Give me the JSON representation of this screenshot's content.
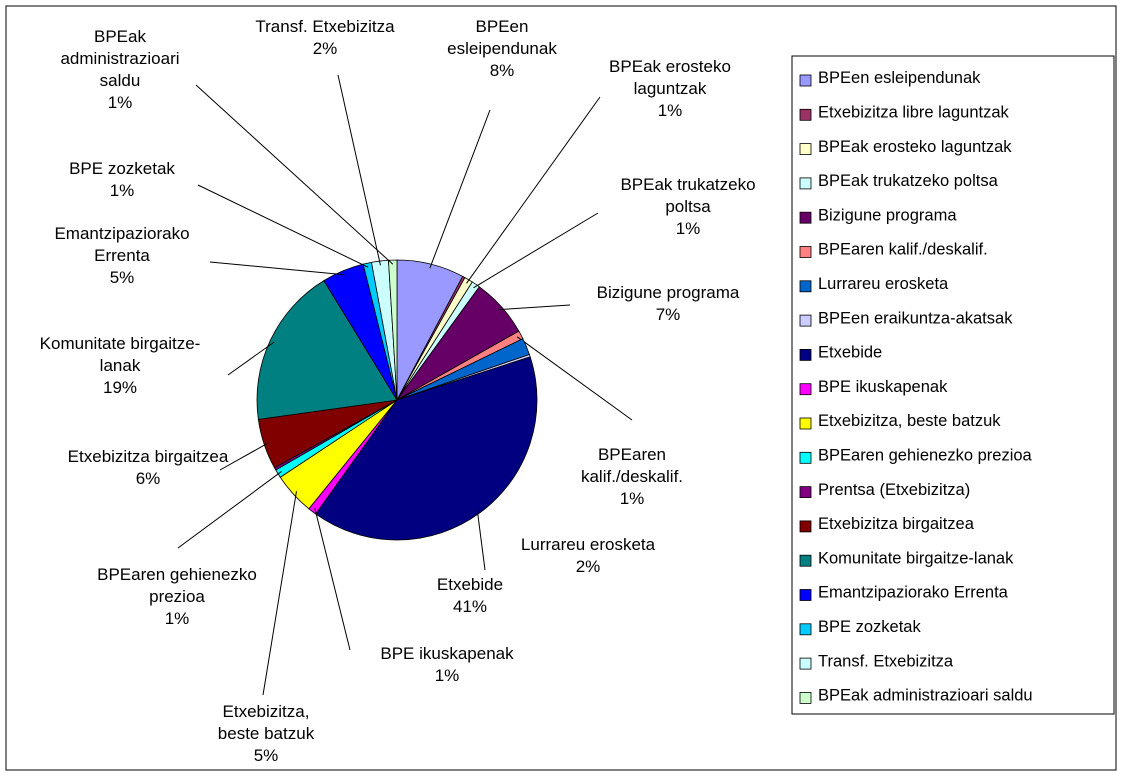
{
  "chart_data": {
    "type": "pie",
    "legend": "right",
    "categories": [
      "BPEen esleipendunak",
      "Etxebizitza libre laguntzak",
      "BPEak erosteko laguntzak",
      "BPEak trukatzeko poltsa",
      "Bizigune programa",
      "BPEaren kalif./deskalif.",
      "Lurrareu erosketa",
      "BPEen eraikuntza-akatsak",
      "Etxebide",
      "BPE ikuskapenak",
      "Etxebizitza, beste batzuk",
      "BPEaren gehienezko prezioa",
      "Prentsa (Etxebizitza)",
      "Etxebizitza birgaitzea",
      "Komunitate birgaitze-lanak",
      "Emantzipaziorako Errenta",
      "BPE zozketak",
      "Transf. Etxebizitza",
      "BPEak administrazioari saldu"
    ],
    "values": [
      8,
      0.3,
      1,
      1,
      7,
      1,
      2,
      0.3,
      41,
      1,
      5,
      1,
      0.3,
      6,
      19,
      5,
      1,
      2,
      1
    ],
    "value_labels": [
      "8%",
      null,
      "1%",
      "1%",
      "7%",
      "1%",
      "2%",
      null,
      "41%",
      "1%",
      "5%",
      "1%",
      null,
      "6%",
      "19%",
      "5%",
      "1%",
      "2%",
      "1%"
    ],
    "colors": [
      "#9999ff",
      "#993366",
      "#ffffcc",
      "#ccffff",
      "#660066",
      "#ff8080",
      "#0066cc",
      "#ccccff",
      "#000080",
      "#ff00ff",
      "#ffff00",
      "#00ffff",
      "#800080",
      "#800000",
      "#008080",
      "#0000ff",
      "#00ccff",
      "#ccffff",
      "#ccffcc"
    ]
  }
}
